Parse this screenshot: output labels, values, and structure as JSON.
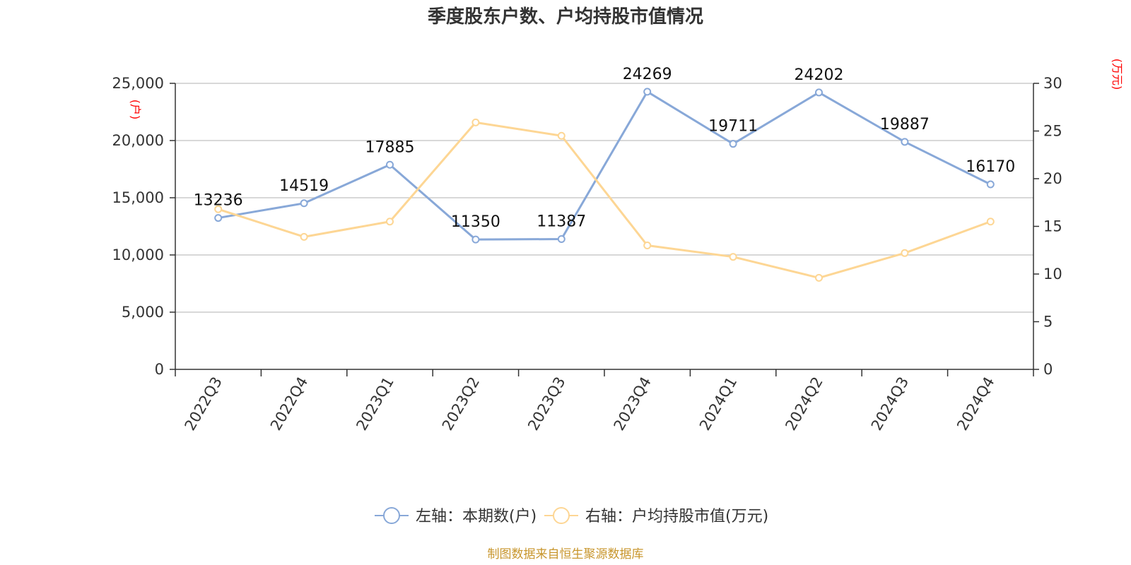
{
  "chart_data": {
    "type": "line",
    "title": "季度股东户数、户均持股市值情况",
    "categories": [
      "2022Q3",
      "2022Q4",
      "2023Q1",
      "2023Q2",
      "2023Q3",
      "2023Q4",
      "2024Q1",
      "2024Q2",
      "2024Q3",
      "2024Q4"
    ],
    "series": [
      {
        "name": "左轴：本期数(户)",
        "axis": "left",
        "color": "#88a8d8",
        "values": [
          13236,
          14519,
          17885,
          11350,
          11387,
          24269,
          19711,
          24202,
          19887,
          16170
        ],
        "show_labels": true
      },
      {
        "name": "右轴：户均持股市值(万元)",
        "axis": "right",
        "color": "#fdd694",
        "values": [
          16.8,
          13.9,
          15.5,
          25.9,
          24.5,
          13.0,
          11.8,
          9.6,
          12.2,
          15.5
        ],
        "show_labels": false
      }
    ],
    "left_axis": {
      "unit": "(户)",
      "ylim": [
        0,
        25000
      ],
      "ticks": [
        0,
        5000,
        10000,
        15000,
        20000,
        25000
      ],
      "tick_labels": [
        "0",
        "5,000",
        "10,000",
        "15,000",
        "20,000",
        "25,000"
      ]
    },
    "right_axis": {
      "unit": "(万元)",
      "ylim": [
        0,
        30
      ],
      "ticks": [
        0,
        5,
        10,
        15,
        20,
        25,
        30
      ],
      "tick_labels": [
        "0",
        "5",
        "10",
        "15",
        "20",
        "25",
        "30"
      ]
    },
    "grid": true,
    "legend_position": "bottom"
  },
  "source": "制图数据来自恒生聚源数据库"
}
